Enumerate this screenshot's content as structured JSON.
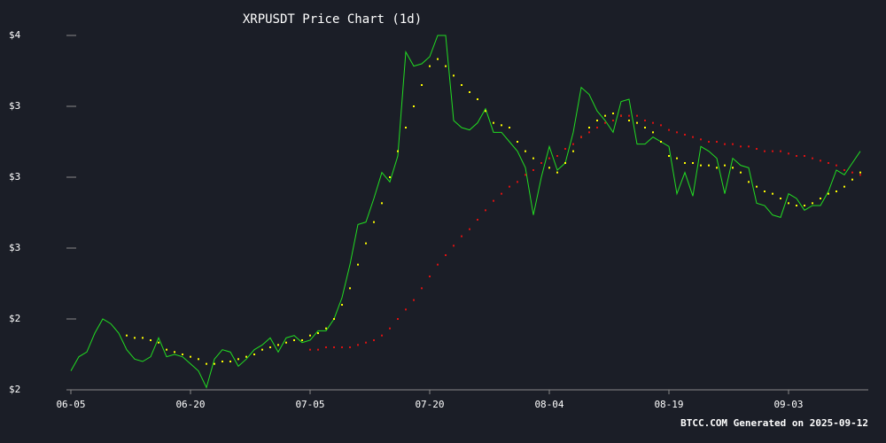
{
  "chart_data": {
    "type": "line",
    "title": "XRPUSDT Price Chart (1d)",
    "footer": "BTCC.COM Generated on 2025-09-12",
    "categories": [
      "06-05",
      null,
      null,
      null,
      null,
      null,
      null,
      null,
      null,
      null,
      null,
      null,
      null,
      null,
      null,
      "06-20",
      null,
      null,
      null,
      null,
      null,
      null,
      null,
      null,
      null,
      null,
      null,
      null,
      null,
      null,
      "07-05",
      null,
      null,
      null,
      null,
      null,
      null,
      null,
      null,
      null,
      null,
      null,
      null,
      null,
      null,
      "07-20",
      null,
      null,
      null,
      null,
      null,
      null,
      null,
      null,
      null,
      null,
      null,
      null,
      null,
      null,
      "08-04",
      null,
      null,
      null,
      null,
      null,
      null,
      null,
      null,
      null,
      null,
      null,
      null,
      null,
      null,
      "08-19",
      null,
      null,
      null,
      null,
      null,
      null,
      null,
      null,
      null,
      null,
      null,
      null,
      null,
      null,
      "09-03",
      null,
      null,
      null,
      null,
      null,
      null,
      null,
      null,
      null
    ],
    "series": [
      {
        "color": "#22dd22",
        "style": "line",
        "values": [
          2.08,
          2.14,
          2.16,
          2.24,
          2.3,
          2.28,
          2.24,
          2.17,
          2.13,
          2.12,
          2.14,
          2.22,
          2.14,
          2.15,
          2.14,
          2.11,
          2.08,
          2.01,
          2.13,
          2.17,
          2.16,
          2.1,
          2.13,
          2.17,
          2.19,
          2.22,
          2.16,
          2.22,
          2.23,
          2.2,
          2.21,
          2.25,
          2.25,
          2.3,
          2.39,
          2.53,
          2.7,
          2.71,
          2.81,
          2.92,
          2.88,
          2.99,
          3.43,
          3.37,
          3.38,
          3.41,
          3.5,
          3.5,
          3.14,
          3.11,
          3.1,
          3.13,
          3.19,
          3.09,
          3.09,
          3.05,
          3.01,
          2.94,
          2.74,
          2.9,
          3.03,
          2.93,
          2.96,
          3.09,
          3.28,
          3.25,
          3.18,
          3.14,
          3.09,
          3.22,
          3.23,
          3.04,
          3.04,
          3.07,
          3.05,
          3.03,
          2.83,
          2.92,
          2.82,
          3.03,
          3.01,
          2.98,
          2.83,
          2.98,
          2.95,
          2.94,
          2.79,
          2.78,
          2.74,
          2.73,
          2.83,
          2.81,
          2.76,
          2.78,
          2.78,
          2.84,
          2.93,
          2.91,
          2.96,
          3.01
        ]
      },
      {
        "color": "#ffff00",
        "style": "dots",
        "values": [
          null,
          null,
          null,
          null,
          null,
          null,
          null,
          2.23,
          2.22,
          2.22,
          2.21,
          2.2,
          2.17,
          2.16,
          2.15,
          2.14,
          2.13,
          2.11,
          2.11,
          2.12,
          2.12,
          2.13,
          2.14,
          2.15,
          2.17,
          2.18,
          2.19,
          2.2,
          2.21,
          2.21,
          2.23,
          2.24,
          2.26,
          2.3,
          2.36,
          2.43,
          2.53,
          2.62,
          2.71,
          2.79,
          2.9,
          3.01,
          3.11,
          3.2,
          3.29,
          3.37,
          3.4,
          3.37,
          3.33,
          3.29,
          3.26,
          3.23,
          3.18,
          3.13,
          3.12,
          3.11,
          3.05,
          3.01,
          2.98,
          2.96,
          2.94,
          2.92,
          2.96,
          3.01,
          3.07,
          3.11,
          3.14,
          3.16,
          3.17,
          3.16,
          3.14,
          3.13,
          3.11,
          3.09,
          3.05,
          2.99,
          2.98,
          2.96,
          2.96,
          2.95,
          2.95,
          2.94,
          2.95,
          2.94,
          2.92,
          2.88,
          2.86,
          2.84,
          2.83,
          2.81,
          2.79,
          2.78,
          2.78,
          2.79,
          2.81,
          2.83,
          2.84,
          2.86,
          2.89,
          2.92
        ]
      },
      {
        "color": "#dd1111",
        "style": "dots",
        "values": [
          null,
          null,
          null,
          null,
          null,
          null,
          null,
          null,
          null,
          null,
          null,
          null,
          null,
          null,
          null,
          null,
          null,
          null,
          null,
          null,
          null,
          null,
          null,
          null,
          null,
          null,
          null,
          null,
          null,
          null,
          2.17,
          2.17,
          2.18,
          2.18,
          2.18,
          2.18,
          2.19,
          2.2,
          2.21,
          2.23,
          2.26,
          2.3,
          2.34,
          2.38,
          2.43,
          2.48,
          2.53,
          2.57,
          2.61,
          2.65,
          2.68,
          2.72,
          2.76,
          2.8,
          2.83,
          2.86,
          2.88,
          2.91,
          2.93,
          2.96,
          2.98,
          2.99,
          3.02,
          3.04,
          3.07,
          3.09,
          3.11,
          3.13,
          3.14,
          3.16,
          3.16,
          3.16,
          3.14,
          3.13,
          3.12,
          3.1,
          3.09,
          3.08,
          3.07,
          3.06,
          3.05,
          3.05,
          3.04,
          3.04,
          3.03,
          3.03,
          3.02,
          3.01,
          3.01,
          3.01,
          3.0,
          2.99,
          2.99,
          2.98,
          2.97,
          2.96,
          2.95,
          2.93,
          2.92,
          2.91
        ]
      }
    ],
    "ylim": [
      2,
      3.5
    ],
    "yticks": [
      {
        "value": 2,
        "label": "$2"
      },
      {
        "value": 2.3,
        "label": "$2"
      },
      {
        "value": 2.6,
        "label": "$3"
      },
      {
        "value": 2.9,
        "label": "$3"
      },
      {
        "value": 3.2,
        "label": "$3"
      },
      {
        "value": 3.5,
        "label": "$4"
      }
    ]
  }
}
